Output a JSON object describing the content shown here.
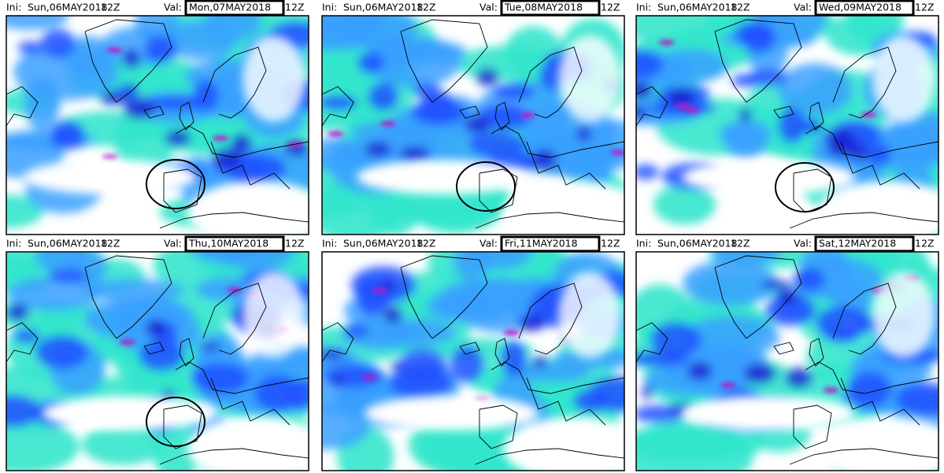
{
  "panels": [
    {
      "ini_label": "Ini:",
      "ini": "Sun,06MAY2018",
      "ini_time": "12Z",
      "val_label": "Val:",
      "val": "Mon,07MAY2018",
      "val_time": "12Z"
    },
    {
      "ini_label": "Ini:",
      "ini": "Sun,06MAY2018",
      "ini_time": "12Z",
      "val_label": "Val:",
      "val": "Tue,08MAY2018",
      "val_time": "12Z"
    },
    {
      "ini_label": "Ini:",
      "ini": "Sun,06MAY2018",
      "ini_time": "12Z",
      "val_label": "Val:",
      "val": "Wed,09MAY2018",
      "val_time": "12Z"
    },
    {
      "ini_label": "Ini:",
      "ini": "Sun,06MAY2018",
      "ini_time": "12Z",
      "val_label": "Val:",
      "val": "Thu,10MAY2018",
      "val_time": "12Z"
    },
    {
      "ini_label": "Ini:",
      "ini": "Sun,06MAY2018",
      "ini_time": "12Z",
      "val_label": "Val:",
      "val": "Fri,11MAY2018",
      "val_time": "12Z"
    },
    {
      "ini_label": "Ini:",
      "ini": "Sun,06MAY2018",
      "ini_time": "12Z",
      "val_label": "Val:",
      "val": "Sat,12MAY2018",
      "val_time": "12Z"
    }
  ]
}
